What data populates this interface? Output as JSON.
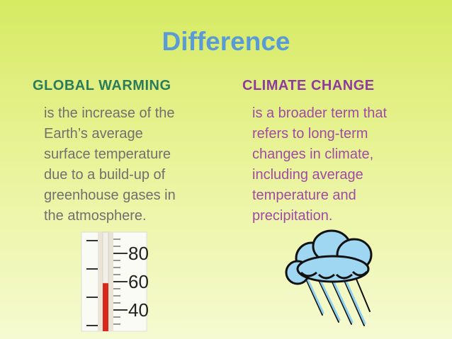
{
  "title": "Difference",
  "columns": [
    {
      "heading": "GLOBAL WARMING",
      "lines": [
        "is the increase of the",
        "Earth’s average",
        "surface temperature",
        "due to a build-up of",
        "greenhouse gases in",
        "the atmosphere."
      ]
    },
    {
      "heading": "CLIMATE CHANGE",
      "lines": [
        "is a broader term that",
        "refers to long-term",
        "changes in climate,",
        "including average",
        "temperature and",
        "precipitation."
      ]
    }
  ],
  "thermometer_labels": [
    "80",
    "60",
    "40"
  ]
}
